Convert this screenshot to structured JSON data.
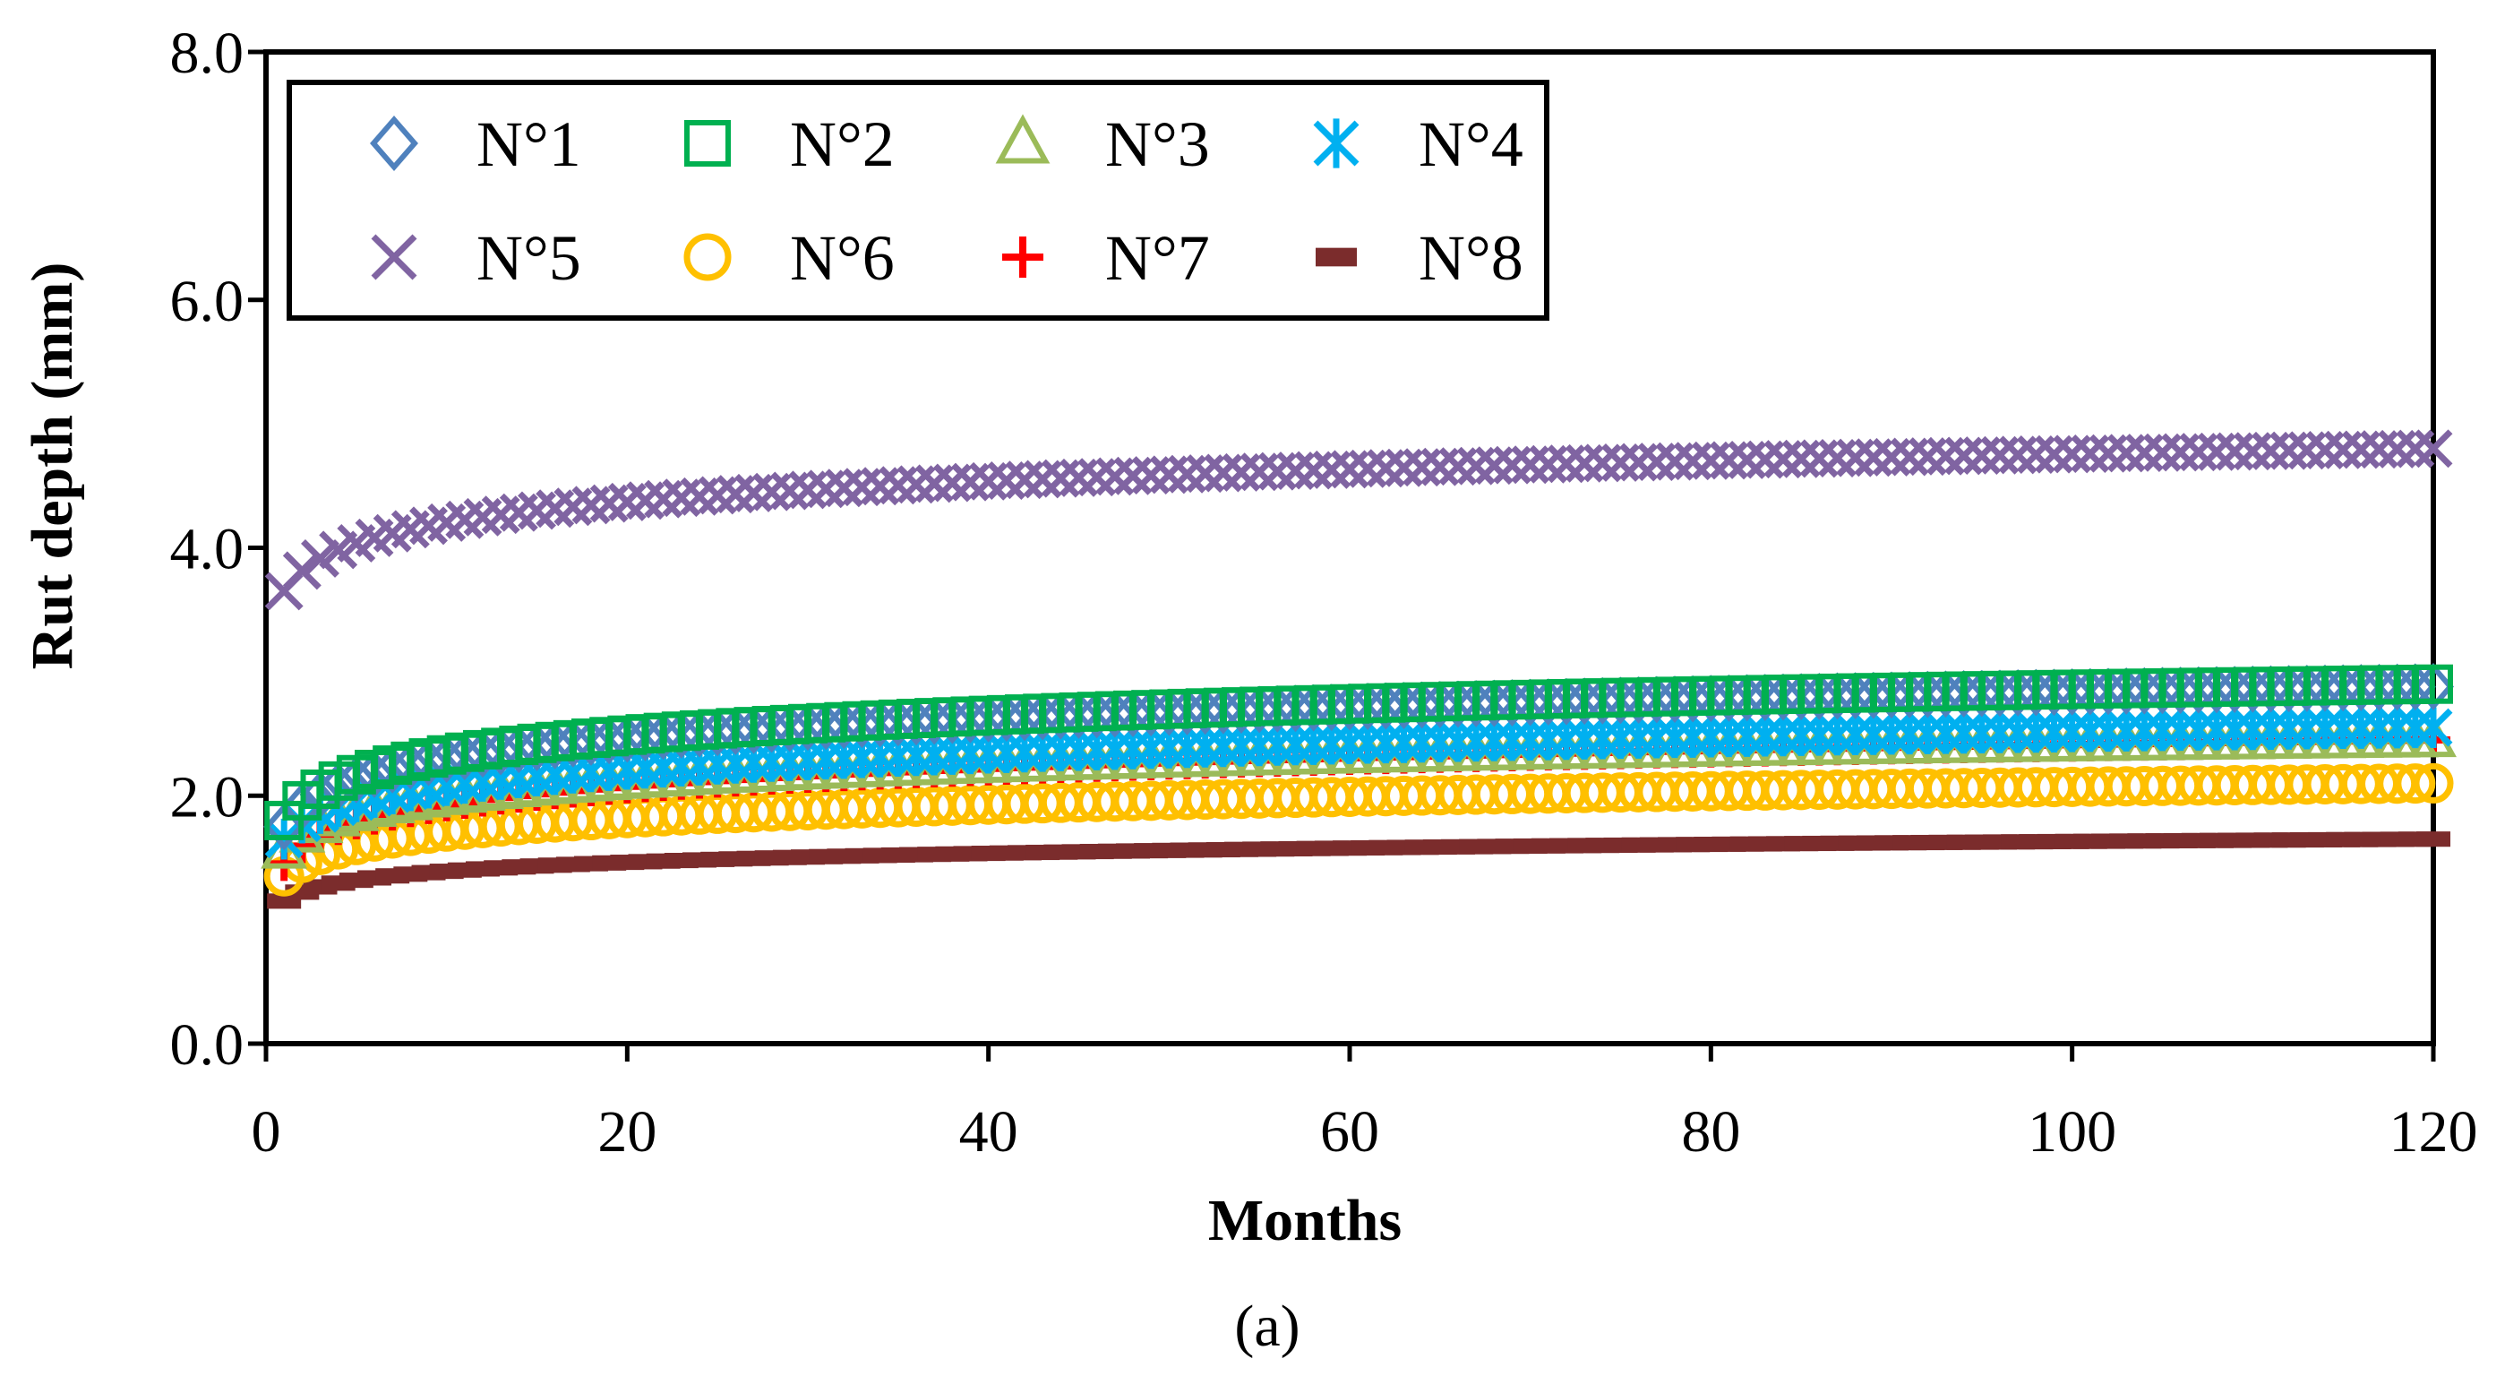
{
  "chart_data": {
    "type": "scatter",
    "title": "",
    "xlabel": "Months",
    "ylabel": "Rut depth (mm)",
    "caption": "(a)",
    "xlim": [
      0,
      120
    ],
    "ylim": [
      0,
      8
    ],
    "x_ticks": [
      0,
      20,
      40,
      60,
      80,
      100,
      120
    ],
    "x_tick_labels": [
      "0",
      "20",
      "40",
      "60",
      "80",
      "100",
      "120"
    ],
    "y_ticks": [
      0,
      2,
      4,
      6,
      8
    ],
    "y_tick_labels": [
      "0.0",
      "2.0",
      "4.0",
      "6.0",
      "8.0"
    ],
    "grid": false,
    "legend_position": "top-left",
    "x": {
      "start": 1,
      "end": 120,
      "step": 1
    },
    "series": [
      {
        "name": "N°1",
        "marker": "diamond",
        "color": "#4F81BD",
        "start_value": 1.75,
        "end_value": 2.88
      },
      {
        "name": "N°2",
        "marker": "square",
        "color": "#00B050",
        "start_value": 1.8,
        "end_value": 2.9
      },
      {
        "name": "N°3",
        "marker": "triangle",
        "color": "#9BBB59",
        "start_value": 1.55,
        "end_value": 2.45
      },
      {
        "name": "N°4",
        "marker": "asterisk",
        "color": "#00B0F0",
        "start_value": 1.65,
        "end_value": 2.55
      },
      {
        "name": "N°5",
        "marker": "x",
        "color": "#8064A2",
        "start_value": 3.65,
        "end_value": 4.8
      },
      {
        "name": "N°6",
        "marker": "circle",
        "color": "#FFC000",
        "start_value": 1.35,
        "end_value": 2.1
      },
      {
        "name": "N°7",
        "marker": "plus",
        "color": "#FF0000",
        "start_value": 1.45,
        "end_value": 2.45
      },
      {
        "name": "N°8",
        "marker": "dash",
        "color": "#7B2C2C",
        "start_value": 1.15,
        "end_value": 1.65
      }
    ]
  }
}
